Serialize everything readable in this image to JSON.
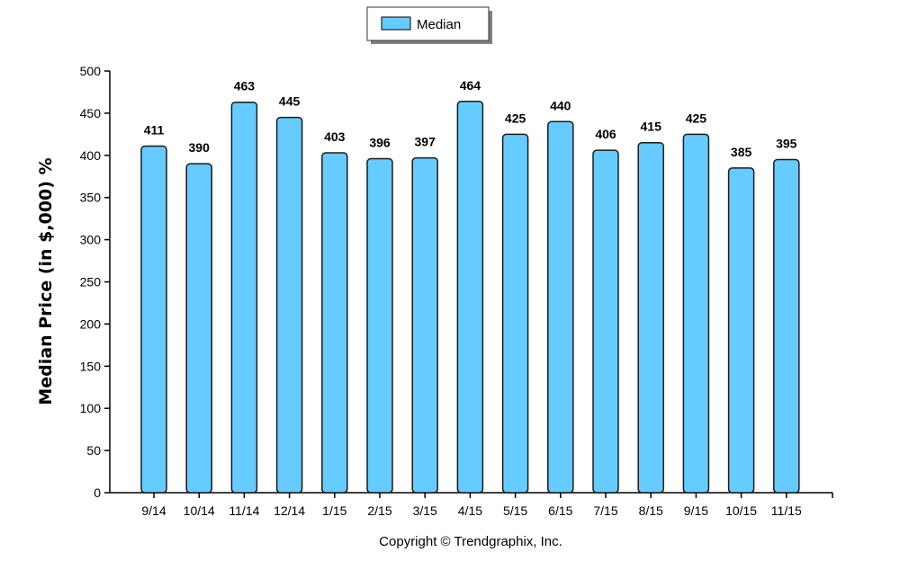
{
  "chart_data": {
    "type": "bar",
    "categories": [
      "9/14",
      "10/14",
      "11/14",
      "12/14",
      "1/15",
      "2/15",
      "3/15",
      "4/15",
      "5/15",
      "6/15",
      "7/15",
      "8/15",
      "9/15",
      "10/15",
      "11/15"
    ],
    "series": [
      {
        "name": "Median",
        "values": [
          411,
          390,
          463,
          445,
          403,
          396,
          397,
          464,
          425,
          440,
          406,
          415,
          425,
          385,
          395
        ],
        "color": "#66ccff"
      }
    ],
    "ylabel": "Median Price (in $,000) %",
    "xlabel": "",
    "ylim": [
      0,
      500
    ],
    "yticks": [
      0,
      50,
      100,
      150,
      200,
      250,
      300,
      350,
      400,
      450,
      500
    ],
    "grid": false,
    "legend_position": "top-center",
    "bar_stroke_color": "#1a1a1a",
    "axis_color": "#000000"
  },
  "footer": {
    "text": "Copyright © Trendgraphix, Inc."
  }
}
